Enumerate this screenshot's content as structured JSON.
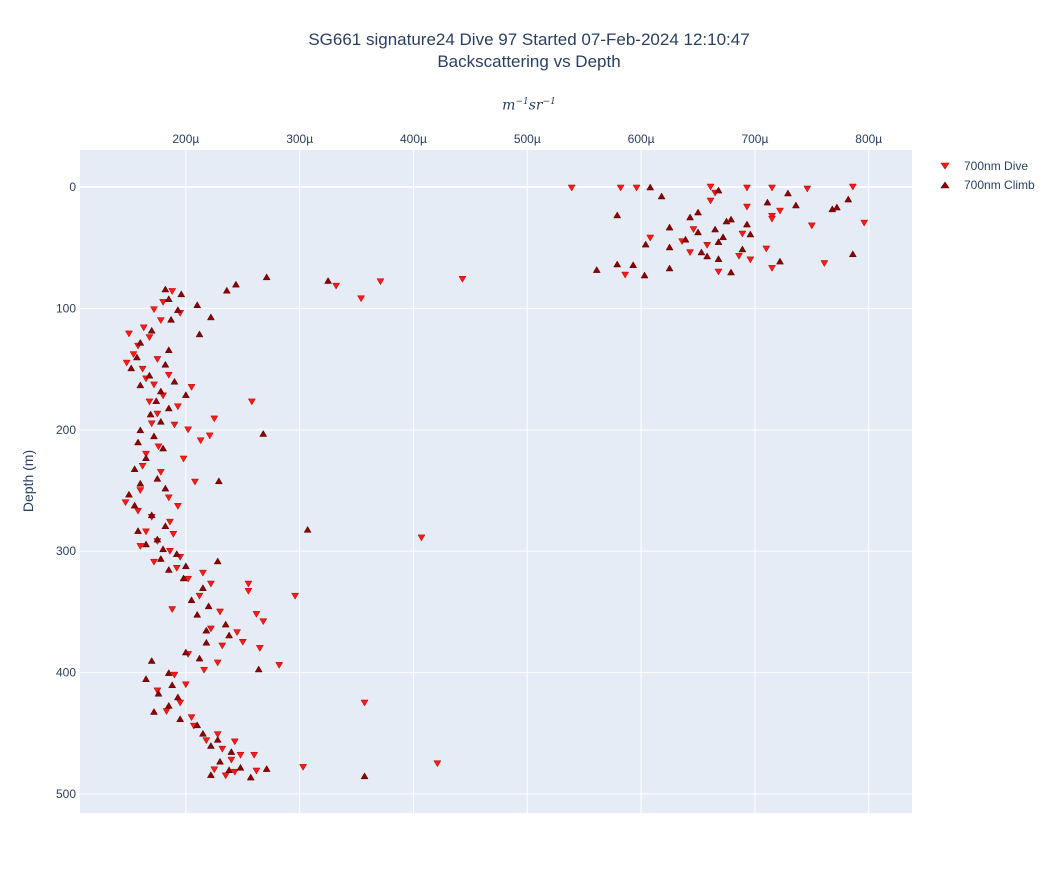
{
  "title": {
    "line1": "SG661 signature24 Dive 97 Started 07-Feb-2024 12:10:47",
    "line2": "Backscattering vs Depth"
  },
  "chart_data": {
    "type": "scatter",
    "title": "SG661 signature24 Dive 97 Started 07-Feb-2024 12:10:47 / Backscattering vs Depth",
    "xlabel": {
      "base1": "m",
      "exp1": "−1",
      "base2": "sr",
      "exp2": "−1"
    },
    "ylabel": "Depth (m)",
    "x_unit": "µ",
    "xlim": [
      107,
      838
    ],
    "ylim": [
      515.6,
      -30.5
    ],
    "xticks": [
      200,
      300,
      400,
      500,
      600,
      700,
      800
    ],
    "xtick_labels": [
      "200µ",
      "300µ",
      "400µ",
      "500µ",
      "600µ",
      "700µ",
      "800µ"
    ],
    "yticks": [
      0,
      100,
      200,
      300,
      400,
      500
    ],
    "ytick_labels": [
      "0",
      "100",
      "200",
      "300",
      "400",
      "500"
    ],
    "grid": true,
    "legend_position": "top-right-outside",
    "series": [
      {
        "name": "700nm Dive",
        "marker": "triangle-down",
        "color": "#ff1a1a",
        "stroke": "#b00000",
        "points": [
          [
            539,
            0.8
          ],
          [
            582,
            0.8
          ],
          [
            596,
            0.8
          ],
          [
            661,
            0
          ],
          [
            693,
            0.8
          ],
          [
            715,
            0.8
          ],
          [
            746,
            1.6
          ],
          [
            786,
            0
          ],
          [
            665,
            5
          ],
          [
            661,
            11.5
          ],
          [
            693,
            16.5
          ],
          [
            722,
            19.8
          ],
          [
            715,
            24
          ],
          [
            715,
            26.4
          ],
          [
            796,
            29.7
          ],
          [
            750,
            32
          ],
          [
            646,
            35
          ],
          [
            689,
            38.7
          ],
          [
            608,
            42
          ],
          [
            636,
            45
          ],
          [
            658,
            48
          ],
          [
            710,
            51
          ],
          [
            643,
            54
          ],
          [
            686,
            57
          ],
          [
            696,
            60
          ],
          [
            761,
            63
          ],
          [
            715,
            67
          ],
          [
            668,
            70
          ],
          [
            586,
            72.5
          ],
          [
            332,
            81.6
          ],
          [
            371,
            78
          ],
          [
            354,
            92
          ],
          [
            443,
            76
          ],
          [
            258,
            177
          ],
          [
            225,
            191
          ],
          [
            221,
            205
          ],
          [
            407,
            289
          ],
          [
            296,
            337
          ],
          [
            282,
            394
          ],
          [
            357,
            425
          ],
          [
            421,
            475
          ],
          [
            303,
            478
          ],
          [
            188,
            86
          ],
          [
            180,
            95
          ],
          [
            172,
            101
          ],
          [
            195,
            104
          ],
          [
            178,
            110
          ],
          [
            163,
            116
          ],
          [
            150,
            121
          ],
          [
            168,
            124
          ],
          [
            158,
            131
          ],
          [
            154,
            138
          ],
          [
            175,
            142
          ],
          [
            148,
            145
          ],
          [
            162,
            150
          ],
          [
            185,
            155
          ],
          [
            165,
            158
          ],
          [
            172,
            163
          ],
          [
            205,
            165
          ],
          [
            180,
            172
          ],
          [
            168,
            177
          ],
          [
            193,
            181
          ],
          [
            175,
            187
          ],
          [
            170,
            195
          ],
          [
            190,
            196
          ],
          [
            202,
            200
          ],
          [
            213,
            209
          ],
          [
            176,
            214
          ],
          [
            165,
            220
          ],
          [
            198,
            224
          ],
          [
            162,
            230
          ],
          [
            178,
            235
          ],
          [
            208,
            243
          ],
          [
            160,
            250
          ],
          [
            185,
            256
          ],
          [
            147,
            260
          ],
          [
            193,
            263
          ],
          [
            158,
            267
          ],
          [
            170,
            272
          ],
          [
            186,
            276
          ],
          [
            165,
            284
          ],
          [
            189,
            286
          ],
          [
            175,
            292
          ],
          [
            160,
            296
          ],
          [
            186,
            300
          ],
          [
            195,
            305
          ],
          [
            172,
            309
          ],
          [
            192,
            314
          ],
          [
            215,
            318
          ],
          [
            202,
            323
          ],
          [
            222,
            327
          ],
          [
            255,
            327
          ],
          [
            255,
            333
          ],
          [
            212,
            337
          ],
          [
            188,
            348
          ],
          [
            230,
            350
          ],
          [
            262,
            352
          ],
          [
            268,
            358
          ],
          [
            222,
            364
          ],
          [
            245,
            367
          ],
          [
            250,
            375
          ],
          [
            265,
            380
          ],
          [
            232,
            378
          ],
          [
            202,
            385
          ],
          [
            228,
            392
          ],
          [
            216,
            398
          ],
          [
            190,
            402
          ],
          [
            200,
            410
          ],
          [
            175,
            415
          ],
          [
            195,
            425
          ],
          [
            183,
            432
          ],
          [
            205,
            437
          ],
          [
            207,
            444
          ],
          [
            228,
            451
          ],
          [
            218,
            456
          ],
          [
            243,
            457
          ],
          [
            232,
            463
          ],
          [
            248,
            468
          ],
          [
            260,
            468
          ],
          [
            240,
            472
          ],
          [
            225,
            480
          ],
          [
            243,
            482
          ],
          [
            235,
            485
          ],
          [
            262,
            481
          ]
        ]
      },
      {
        "name": "700nm Climb",
        "marker": "triangle-up",
        "color": "#8b0000",
        "stroke": "#5a0000",
        "points": [
          [
            608,
            0
          ],
          [
            668,
            2.5
          ],
          [
            618,
            7.4
          ],
          [
            729,
            4.9
          ],
          [
            782,
            9.9
          ],
          [
            736,
            14.8
          ],
          [
            711,
            12.4
          ],
          [
            772,
            16.5
          ],
          [
            768,
            18
          ],
          [
            579,
            23
          ],
          [
            643,
            24.7
          ],
          [
            650,
            20.6
          ],
          [
            679,
            26.4
          ],
          [
            675,
            28
          ],
          [
            693,
            30.5
          ],
          [
            625,
            33
          ],
          [
            665,
            34.6
          ],
          [
            650,
            37
          ],
          [
            696,
            38.7
          ],
          [
            672,
            41
          ],
          [
            639,
            43
          ],
          [
            604,
            47
          ],
          [
            668,
            45
          ],
          [
            625,
            49.4
          ],
          [
            653,
            53.5
          ],
          [
            658,
            56.8
          ],
          [
            689,
            51
          ],
          [
            668,
            59
          ],
          [
            786,
            55
          ],
          [
            722,
            61
          ],
          [
            579,
            63.4
          ],
          [
            593,
            64
          ],
          [
            561,
            68
          ],
          [
            625,
            66.7
          ],
          [
            603,
            72.5
          ],
          [
            679,
            70
          ],
          [
            271,
            74
          ],
          [
            325,
            77
          ],
          [
            244,
            80
          ],
          [
            236,
            85
          ],
          [
            268,
            203
          ],
          [
            307,
            282
          ],
          [
            229,
            242
          ],
          [
            357,
            485
          ],
          [
            271,
            479
          ],
          [
            264,
            397
          ],
          [
            182,
            84
          ],
          [
            196,
            88
          ],
          [
            185,
            92
          ],
          [
            210,
            97
          ],
          [
            222,
            107
          ],
          [
            193,
            101
          ],
          [
            187,
            109
          ],
          [
            170,
            118
          ],
          [
            212,
            121
          ],
          [
            160,
            128
          ],
          [
            185,
            134
          ],
          [
            157,
            140
          ],
          [
            182,
            146
          ],
          [
            152,
            149
          ],
          [
            168,
            155
          ],
          [
            190,
            160
          ],
          [
            160,
            163
          ],
          [
            178,
            168
          ],
          [
            200,
            171
          ],
          [
            174,
            176
          ],
          [
            185,
            182
          ],
          [
            169,
            187
          ],
          [
            178,
            193
          ],
          [
            160,
            200
          ],
          [
            172,
            205
          ],
          [
            158,
            210
          ],
          [
            180,
            215
          ],
          [
            165,
            223
          ],
          [
            155,
            232
          ],
          [
            175,
            240
          ],
          [
            160,
            244
          ],
          [
            150,
            253
          ],
          [
            182,
            248
          ],
          [
            155,
            262
          ],
          [
            170,
            270
          ],
          [
            182,
            279
          ],
          [
            158,
            283
          ],
          [
            175,
            290
          ],
          [
            165,
            294
          ],
          [
            180,
            298
          ],
          [
            192,
            302
          ],
          [
            178,
            306
          ],
          [
            200,
            312
          ],
          [
            185,
            315
          ],
          [
            228,
            308
          ],
          [
            198,
            322
          ],
          [
            215,
            330
          ],
          [
            205,
            340
          ],
          [
            220,
            345
          ],
          [
            210,
            352
          ],
          [
            235,
            360
          ],
          [
            218,
            365
          ],
          [
            238,
            369
          ],
          [
            218,
            375
          ],
          [
            200,
            383
          ],
          [
            212,
            388
          ],
          [
            170,
            390
          ],
          [
            185,
            400
          ],
          [
            165,
            405
          ],
          [
            188,
            410
          ],
          [
            176,
            417
          ],
          [
            193,
            420
          ],
          [
            185,
            427
          ],
          [
            172,
            432
          ],
          [
            195,
            438
          ],
          [
            210,
            443
          ],
          [
            215,
            450
          ],
          [
            228,
            455
          ],
          [
            222,
            460
          ],
          [
            240,
            465
          ],
          [
            230,
            473
          ],
          [
            248,
            478
          ],
          [
            238,
            480
          ],
          [
            222,
            484
          ],
          [
            257,
            486
          ]
        ]
      }
    ]
  }
}
